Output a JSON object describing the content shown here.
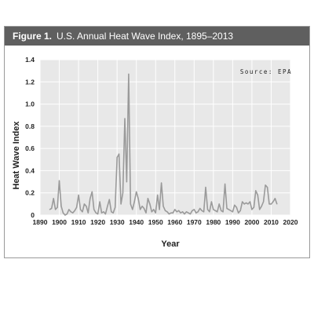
{
  "header": {
    "figure_label": "Figure 1.",
    "title": "U.S. Annual Heat Wave Index, 1895–2013"
  },
  "source_note": "Source: EPA",
  "colors": {
    "header_bg": "#5f5f5f",
    "plot_bg": "#e8e8e8",
    "line": "#9a9a9a",
    "grid": "#ffffff"
  },
  "chart_data": {
    "type": "line",
    "xlabel": "Year",
    "ylabel": "Heat Wave Index",
    "xlim": [
      1890,
      2020
    ],
    "ylim": [
      0,
      1.4
    ],
    "x_ticks": [
      1890,
      1900,
      1910,
      1920,
      1930,
      1940,
      1950,
      1960,
      1970,
      1980,
      1990,
      2000,
      2010,
      2020
    ],
    "y_ticks": [
      0,
      0.2,
      0.4,
      0.6,
      0.8,
      1.0,
      1.2,
      1.4
    ],
    "y_tick_labels": [
      "0",
      "0.2",
      "0.4",
      "0.6",
      "0.8",
      "1.0",
      "1.2",
      "1.4"
    ],
    "grid": true,
    "series": [
      {
        "x": [
          1895,
          1896,
          1897,
          1898,
          1899,
          1900,
          1901,
          1902,
          1903,
          1904,
          1905,
          1906,
          1907,
          1908,
          1909,
          1910,
          1911,
          1912,
          1913,
          1914,
          1915,
          1916,
          1917,
          1918,
          1919,
          1920,
          1921,
          1922,
          1923,
          1924,
          1925,
          1926,
          1927,
          1928,
          1929,
          1930,
          1931,
          1932,
          1933,
          1934,
          1935,
          1936,
          1937,
          1938,
          1939,
          1940,
          1941,
          1942,
          1943,
          1944,
          1945,
          1946,
          1947,
          1948,
          1949,
          1950,
          1951,
          1952,
          1953,
          1954,
          1955,
          1956,
          1957,
          1958,
          1959,
          1960,
          1961,
          1962,
          1963,
          1964,
          1965,
          1966,
          1967,
          1968,
          1969,
          1970,
          1971,
          1972,
          1973,
          1974,
          1975,
          1976,
          1977,
          1978,
          1979,
          1980,
          1981,
          1982,
          1983,
          1984,
          1985,
          1986,
          1987,
          1988,
          1989,
          1990,
          1991,
          1992,
          1993,
          1994,
          1995,
          1996,
          1997,
          1998,
          1999,
          2000,
          2001,
          2002,
          2003,
          2004,
          2005,
          2006,
          2007,
          2008,
          2009,
          2010,
          2011,
          2012,
          2013
        ],
        "values": [
          0.05,
          0.06,
          0.15,
          0.05,
          0.07,
          0.31,
          0.08,
          0.02,
          0.0,
          0.01,
          0.05,
          0.03,
          0.02,
          0.04,
          0.07,
          0.18,
          0.05,
          0.03,
          0.1,
          0.08,
          0.02,
          0.15,
          0.21,
          0.05,
          0.02,
          0.01,
          0.12,
          0.02,
          0.03,
          0.01,
          0.08,
          0.14,
          0.03,
          0.02,
          0.07,
          0.52,
          0.55,
          0.1,
          0.2,
          0.87,
          0.3,
          1.27,
          0.1,
          0.05,
          0.12,
          0.21,
          0.15,
          0.05,
          0.08,
          0.06,
          0.02,
          0.15,
          0.1,
          0.03,
          0.05,
          0.02,
          0.18,
          0.05,
          0.29,
          0.08,
          0.04,
          0.03,
          0.01,
          0.02,
          0.02,
          0.05,
          0.03,
          0.04,
          0.02,
          0.03,
          0.01,
          0.03,
          0.02,
          0.01,
          0.04,
          0.05,
          0.02,
          0.03,
          0.06,
          0.04,
          0.03,
          0.25,
          0.05,
          0.03,
          0.12,
          0.05,
          0.04,
          0.03,
          0.1,
          0.04,
          0.03,
          0.28,
          0.06,
          0.05,
          0.04,
          0.03,
          0.09,
          0.07,
          0.02,
          0.04,
          0.12,
          0.1,
          0.11,
          0.1,
          0.12,
          0.05,
          0.07,
          0.22,
          0.18,
          0.05,
          0.08,
          0.12,
          0.27,
          0.25,
          0.1,
          0.1,
          0.12,
          0.15,
          0.1
        ]
      }
    ]
  }
}
